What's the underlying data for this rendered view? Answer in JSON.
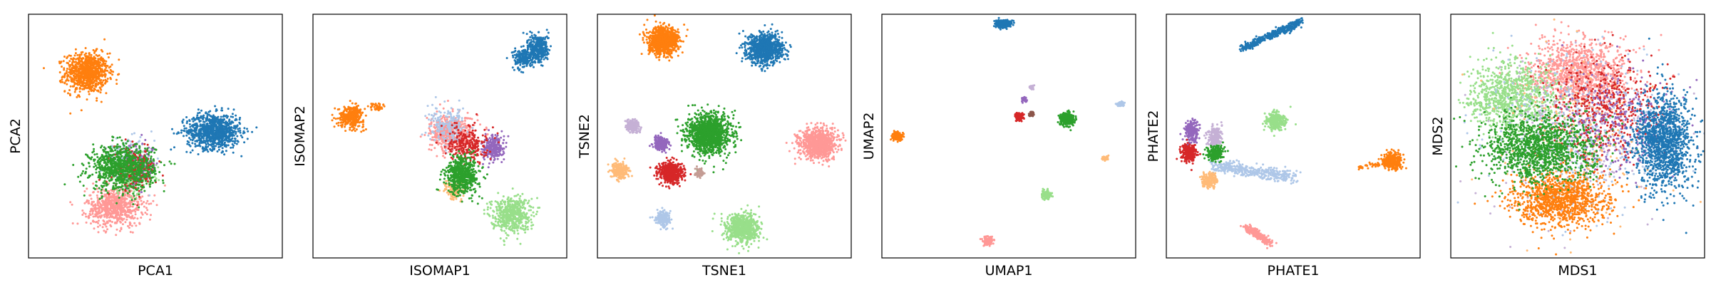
{
  "chart_data": [
    {
      "type": "scatter",
      "xlabel": "PCA1",
      "ylabel": "PCA2",
      "xlim": [
        0,
        10
      ],
      "ylim": [
        0,
        10
      ],
      "grid": false,
      "series": [
        {
          "color": "#ff7f0e",
          "clusters": [
            {
              "cx": 2.3,
              "cy": 7.6,
              "rx": 1.0,
              "ry": 0.95,
              "n": 900
            }
          ]
        },
        {
          "color": "#1f77b4",
          "clusters": [
            {
              "cx": 7.3,
              "cy": 5.2,
              "rx": 1.25,
              "ry": 0.85,
              "n": 900
            }
          ]
        },
        {
          "color": "#ff9896",
          "clusters": [
            {
              "cx": 3.4,
              "cy": 2.1,
              "rx": 1.3,
              "ry": 0.95,
              "n": 700
            }
          ]
        },
        {
          "color": "#98df8a",
          "clusters": [
            {
              "cx": 4.0,
              "cy": 3.5,
              "rx": 1.1,
              "ry": 1.0,
              "n": 250
            }
          ]
        },
        {
          "color": "#aec7e8",
          "clusters": [
            {
              "cx": 4.0,
              "cy": 4.0,
              "rx": 1.1,
              "ry": 1.0,
              "n": 150
            }
          ]
        },
        {
          "color": "#9467bd",
          "clusters": [
            {
              "cx": 4.3,
              "cy": 3.8,
              "rx": 1.0,
              "ry": 1.0,
              "n": 150
            }
          ]
        },
        {
          "color": "#d62728",
          "clusters": [
            {
              "cx": 4.2,
              "cy": 3.6,
              "rx": 1.0,
              "ry": 1.0,
              "n": 200
            }
          ]
        },
        {
          "color": "#2ca02c",
          "clusters": [
            {
              "cx": 3.7,
              "cy": 3.7,
              "rx": 1.5,
              "ry": 1.1,
              "n": 900
            }
          ]
        }
      ]
    },
    {
      "type": "scatter",
      "xlabel": "ISOMAP1",
      "ylabel": "ISOMAP2",
      "xlim": [
        0,
        10
      ],
      "ylim": [
        0,
        10
      ],
      "grid": false,
      "series": [
        {
          "color": "#ff7f0e",
          "clusters": [
            {
              "cx": 1.5,
              "cy": 5.8,
              "rx": 0.6,
              "ry": 0.5,
              "n": 350
            },
            {
              "cx": 2.5,
              "cy": 6.2,
              "rx": 0.3,
              "ry": 0.2,
              "n": 40
            }
          ]
        },
        {
          "color": "#1f77b4",
          "clusters": [
            {
              "cx": 8.3,
              "cy": 8.2,
              "rx": 0.5,
              "ry": 0.5,
              "n": 200
            },
            {
              "cx": 8.9,
              "cy": 8.6,
              "rx": 0.45,
              "ry": 0.7,
              "n": 350
            }
          ]
        },
        {
          "color": "#98df8a",
          "clusters": [
            {
              "cx": 7.8,
              "cy": 1.8,
              "rx": 0.9,
              "ry": 0.85,
              "n": 550
            }
          ]
        },
        {
          "color": "#ffbb78",
          "clusters": [
            {
              "cx": 5.6,
              "cy": 2.8,
              "rx": 0.5,
              "ry": 0.5,
              "n": 150
            }
          ]
        },
        {
          "color": "#ff9896",
          "clusters": [
            {
              "cx": 5.5,
              "cy": 5.1,
              "rx": 1.0,
              "ry": 0.85,
              "n": 600
            }
          ]
        },
        {
          "color": "#aec7e8",
          "clusters": [
            {
              "cx": 5.3,
              "cy": 5.4,
              "rx": 0.9,
              "ry": 0.9,
              "n": 200
            }
          ]
        },
        {
          "color": "#9467bd",
          "clusters": [
            {
              "cx": 7.1,
              "cy": 4.5,
              "rx": 0.5,
              "ry": 0.6,
              "n": 250
            }
          ]
        },
        {
          "color": "#d62728",
          "clusters": [
            {
              "cx": 6.1,
              "cy": 4.7,
              "rx": 0.9,
              "ry": 0.9,
              "n": 250
            }
          ]
        },
        {
          "color": "#2ca02c",
          "clusters": [
            {
              "cx": 5.9,
              "cy": 3.4,
              "rx": 0.75,
              "ry": 0.9,
              "n": 600
            }
          ]
        }
      ]
    },
    {
      "type": "scatter",
      "xlabel": "TSNE1",
      "ylabel": "TSNE2",
      "xlim": [
        0,
        10
      ],
      "ylim": [
        0,
        10
      ],
      "grid": false,
      "series": [
        {
          "color": "#ff7f0e",
          "clusters": [
            {
              "cx": 2.6,
              "cy": 8.9,
              "rx": 0.7,
              "ry": 0.65,
              "n": 900
            }
          ]
        },
        {
          "color": "#1f77b4",
          "clusters": [
            {
              "cx": 6.6,
              "cy": 8.6,
              "rx": 0.85,
              "ry": 0.72,
              "n": 900
            }
          ]
        },
        {
          "color": "#2ca02c",
          "clusters": [
            {
              "cx": 4.4,
              "cy": 5.1,
              "rx": 1.0,
              "ry": 0.95,
              "n": 1300
            }
          ]
        },
        {
          "color": "#ff9896",
          "clusters": [
            {
              "cx": 8.7,
              "cy": 4.7,
              "rx": 0.85,
              "ry": 0.72,
              "n": 900
            }
          ]
        },
        {
          "color": "#98df8a",
          "clusters": [
            {
              "cx": 5.7,
              "cy": 1.2,
              "rx": 0.75,
              "ry": 0.7,
              "n": 800
            }
          ]
        },
        {
          "color": "#d62728",
          "clusters": [
            {
              "cx": 2.9,
              "cy": 3.5,
              "rx": 0.55,
              "ry": 0.5,
              "n": 600
            }
          ]
        },
        {
          "color": "#9467bd",
          "clusters": [
            {
              "cx": 2.5,
              "cy": 4.7,
              "rx": 0.35,
              "ry": 0.3,
              "n": 250
            }
          ]
        },
        {
          "color": "#c5b0d5",
          "clusters": [
            {
              "cx": 1.4,
              "cy": 5.4,
              "rx": 0.3,
              "ry": 0.3,
              "n": 200
            }
          ]
        },
        {
          "color": "#ffbb78",
          "clusters": [
            {
              "cx": 0.9,
              "cy": 3.6,
              "rx": 0.4,
              "ry": 0.4,
              "n": 250
            }
          ]
        },
        {
          "color": "#aec7e8",
          "clusters": [
            {
              "cx": 2.6,
              "cy": 1.6,
              "rx": 0.35,
              "ry": 0.35,
              "n": 200
            }
          ]
        },
        {
          "color": "#c49c94",
          "clusters": [
            {
              "cx": 4.0,
              "cy": 3.5,
              "rx": 0.2,
              "ry": 0.2,
              "n": 60
            }
          ]
        }
      ]
    },
    {
      "type": "scatter",
      "xlabel": "UMAP1",
      "ylabel": "UMAP2",
      "xlim": [
        0,
        10
      ],
      "ylim": [
        0,
        10
      ],
      "grid": false,
      "series": [
        {
          "color": "#1f77b4",
          "clusters": [
            {
              "cx": 4.8,
              "cy": 9.6,
              "rx": 0.35,
              "ry": 0.18,
              "n": 300
            }
          ]
        },
        {
          "color": "#ff7f0e",
          "clusters": [
            {
              "cx": 0.6,
              "cy": 5.0,
              "rx": 0.22,
              "ry": 0.22,
              "n": 200
            }
          ]
        },
        {
          "color": "#2ca02c",
          "clusters": [
            {
              "cx": 7.3,
              "cy": 5.7,
              "rx": 0.32,
              "ry": 0.3,
              "n": 300
            }
          ]
        },
        {
          "color": "#d62728",
          "clusters": [
            {
              "cx": 5.4,
              "cy": 5.8,
              "rx": 0.2,
              "ry": 0.2,
              "n": 120
            }
          ]
        },
        {
          "color": "#9467bd",
          "clusters": [
            {
              "cx": 5.6,
              "cy": 6.5,
              "rx": 0.12,
              "ry": 0.15,
              "n": 50
            }
          ]
        },
        {
          "color": "#c5b0d5",
          "clusters": [
            {
              "cx": 5.9,
              "cy": 7.0,
              "rx": 0.12,
              "ry": 0.1,
              "n": 40
            }
          ]
        },
        {
          "color": "#8c564b",
          "clusters": [
            {
              "cx": 5.9,
              "cy": 5.9,
              "rx": 0.12,
              "ry": 0.12,
              "n": 40
            }
          ]
        },
        {
          "color": "#aec7e8",
          "clusters": [
            {
              "cx": 9.4,
              "cy": 6.3,
              "rx": 0.2,
              "ry": 0.1,
              "n": 50
            }
          ]
        },
        {
          "color": "#ffbb78",
          "clusters": [
            {
              "cx": 8.8,
              "cy": 4.1,
              "rx": 0.15,
              "ry": 0.12,
              "n": 50
            }
          ]
        },
        {
          "color": "#98df8a",
          "clusters": [
            {
              "cx": 6.5,
              "cy": 2.6,
              "rx": 0.22,
              "ry": 0.2,
              "n": 120
            }
          ]
        },
        {
          "color": "#ff9896",
          "clusters": [
            {
              "cx": 4.2,
              "cy": 0.7,
              "rx": 0.25,
              "ry": 0.2,
              "n": 130
            }
          ]
        }
      ]
    },
    {
      "type": "scatter",
      "xlabel": "PHATE1",
      "ylabel": "PHATE2",
      "xlim": [
        0,
        10
      ],
      "ylim": [
        0,
        10
      ],
      "grid": false,
      "series": [
        {
          "color": "#1f77b4",
          "clusters": [
            {
              "x0": 3.0,
              "y0": 8.6,
              "x1": 5.3,
              "y1": 9.7,
              "w": 0.15,
              "n": 400
            }
          ]
        },
        {
          "color": "#ff7f0e",
          "clusters": [
            {
              "cx": 8.9,
              "cy": 4.0,
              "rx": 0.45,
              "ry": 0.4,
              "n": 350
            },
            {
              "x0": 7.6,
              "y0": 3.7,
              "x1": 8.6,
              "y1": 3.9,
              "w": 0.1,
              "n": 40
            }
          ]
        },
        {
          "color": "#98df8a",
          "clusters": [
            {
              "cx": 4.3,
              "cy": 5.6,
              "rx": 0.45,
              "ry": 0.45,
              "n": 300
            }
          ]
        },
        {
          "color": "#ff9896",
          "clusters": [
            {
              "x0": 3.1,
              "y0": 1.3,
              "x1": 4.1,
              "y1": 0.6,
              "w": 0.15,
              "n": 250
            }
          ]
        },
        {
          "color": "#aec7e8",
          "clusters": [
            {
              "x0": 1.8,
              "y0": 3.8,
              "x1": 5.0,
              "y1": 3.3,
              "w": 0.25,
              "n": 400
            }
          ]
        },
        {
          "color": "#ffbb78",
          "clusters": [
            {
              "cx": 1.7,
              "cy": 3.2,
              "rx": 0.35,
              "ry": 0.4,
              "n": 200
            }
          ]
        },
        {
          "color": "#c5b0d5",
          "clusters": [
            {
              "cx": 1.9,
              "cy": 5.0,
              "rx": 0.35,
              "ry": 0.5,
              "n": 200
            }
          ]
        },
        {
          "color": "#9467bd",
          "clusters": [
            {
              "cx": 1.0,
              "cy": 5.2,
              "rx": 0.3,
              "ry": 0.5,
              "n": 200
            }
          ]
        },
        {
          "color": "#d62728",
          "clusters": [
            {
              "cx": 0.9,
              "cy": 4.3,
              "rx": 0.35,
              "ry": 0.4,
              "n": 250
            }
          ]
        },
        {
          "color": "#2ca02c",
          "clusters": [
            {
              "cx": 1.9,
              "cy": 4.3,
              "rx": 0.4,
              "ry": 0.35,
              "n": 250
            }
          ]
        }
      ]
    },
    {
      "type": "scatter",
      "xlabel": "MDS1",
      "ylabel": "MDS2",
      "xlim": [
        0,
        10
      ],
      "ylim": [
        0,
        10
      ],
      "grid": false,
      "series": [
        {
          "color": "#ff9896",
          "clusters": [
            {
              "cx": 5.0,
              "cy": 7.6,
              "rx": 2.4,
              "ry": 1.6,
              "n": 1100
            }
          ]
        },
        {
          "color": "#98df8a",
          "clusters": [
            {
              "cx": 2.4,
              "cy": 6.6,
              "rx": 2.0,
              "ry": 1.7,
              "n": 900
            }
          ]
        },
        {
          "color": "#aec7e8",
          "clusters": [
            {
              "cx": 5.0,
              "cy": 5.0,
              "rx": 3.6,
              "ry": 3.6,
              "n": 500
            }
          ]
        },
        {
          "color": "#c5b0d5",
          "clusters": [
            {
              "cx": 5.0,
              "cy": 5.0,
              "rx": 3.6,
              "ry": 3.6,
              "n": 300
            }
          ]
        },
        {
          "color": "#ffbb78",
          "clusters": [
            {
              "cx": 5.0,
              "cy": 5.0,
              "rx": 3.6,
              "ry": 3.6,
              "n": 250
            }
          ]
        },
        {
          "color": "#d62728",
          "clusters": [
            {
              "cx": 6.2,
              "cy": 6.2,
              "rx": 2.6,
              "ry": 2.4,
              "n": 500
            }
          ]
        },
        {
          "color": "#9467bd",
          "clusters": [
            {
              "cx": 6.5,
              "cy": 5.5,
              "rx": 2.6,
              "ry": 2.6,
              "n": 300
            }
          ]
        },
        {
          "color": "#ff7f0e",
          "clusters": [
            {
              "cx": 4.3,
              "cy": 2.4,
              "rx": 2.3,
              "ry": 1.3,
              "n": 1100
            }
          ]
        },
        {
          "color": "#2ca02c",
          "clusters": [
            {
              "cx": 3.4,
              "cy": 4.5,
              "rx": 2.6,
              "ry": 1.6,
              "n": 1300
            }
          ]
        },
        {
          "color": "#1f77b4",
          "clusters": [
            {
              "cx": 8.4,
              "cy": 4.8,
              "rx": 1.35,
              "ry": 2.3,
              "n": 1300
            }
          ]
        }
      ]
    }
  ]
}
